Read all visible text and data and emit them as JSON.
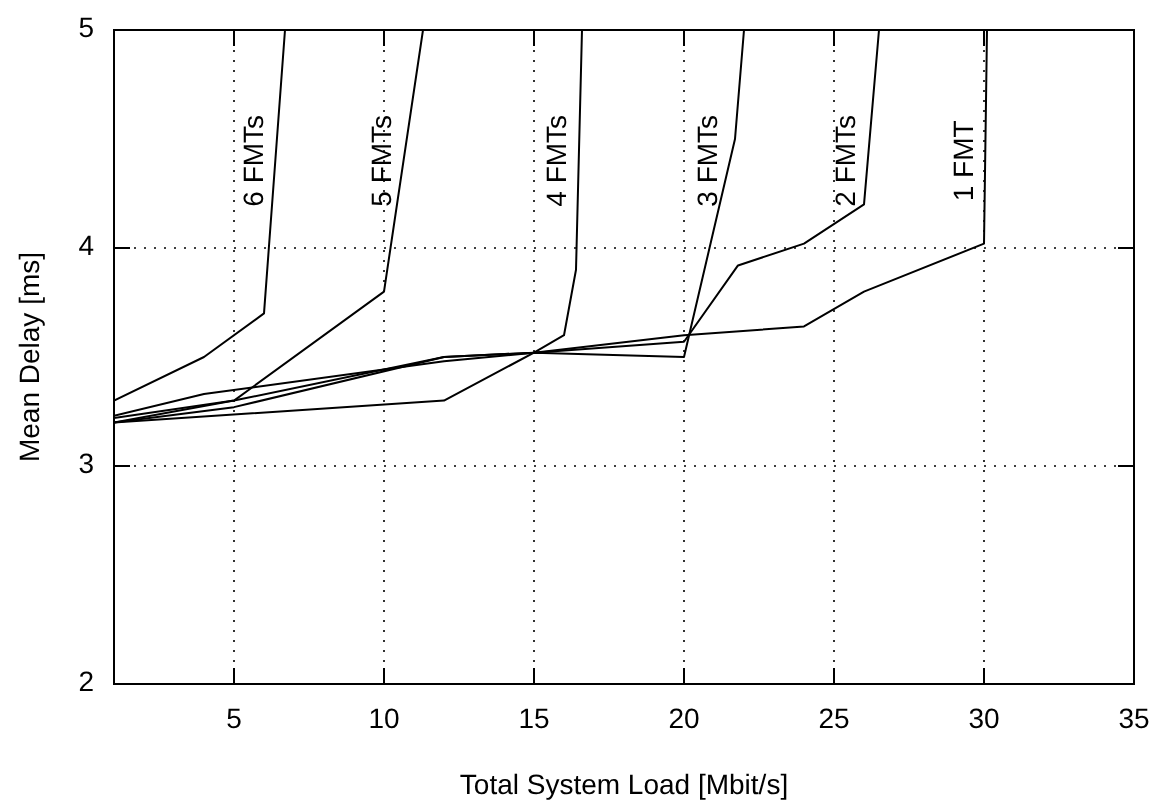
{
  "chart_data": {
    "type": "line",
    "xlabel": "Total System Load [Mbit/s]",
    "ylabel": "Mean Delay [ms]",
    "xlim": [
      1,
      35
    ],
    "ylim": [
      2,
      5
    ],
    "xticks": [
      5,
      10,
      15,
      20,
      25,
      30,
      35
    ],
    "yticks": [
      2,
      3,
      4,
      5
    ],
    "grid": true,
    "marker": "none",
    "line_style": "solid",
    "series": [
      {
        "name": "6 FMTs",
        "color": "#000000",
        "x": [
          1,
          4,
          6,
          6.7
        ],
        "values": [
          3.3,
          3.5,
          3.7,
          5
        ]
      },
      {
        "name": "5 FMTs",
        "color": "#000000",
        "x": [
          1,
          5,
          10,
          11.3
        ],
        "values": [
          3.2,
          3.3,
          3.8,
          5
        ]
      },
      {
        "name": "4 FMTs",
        "color": "#000000",
        "x": [
          1,
          12,
          15,
          16,
          16.4,
          16.6
        ],
        "values": [
          3.2,
          3.3,
          3.52,
          3.6,
          3.9,
          5
        ]
      },
      {
        "name": "3 FMTs",
        "color": "#000000",
        "x": [
          1,
          5,
          12,
          15,
          20,
          21.7,
          22
        ],
        "values": [
          3.2,
          3.27,
          3.5,
          3.52,
          3.5,
          4.5,
          5
        ]
      },
      {
        "name": "2 FMTs",
        "color": "#000000",
        "x": [
          1,
          5,
          12,
          15,
          20,
          21.8,
          24,
          26,
          26.5
        ],
        "values": [
          3.22,
          3.3,
          3.5,
          3.52,
          3.57,
          3.92,
          4.02,
          4.2,
          5
        ]
      },
      {
        "name": "1 FMT",
        "color": "#000000",
        "x": [
          1,
          4,
          12,
          15,
          20,
          24,
          26,
          30,
          30.1
        ],
        "values": [
          3.23,
          3.33,
          3.48,
          3.52,
          3.6,
          3.64,
          3.8,
          4.02,
          5
        ]
      }
    ]
  }
}
